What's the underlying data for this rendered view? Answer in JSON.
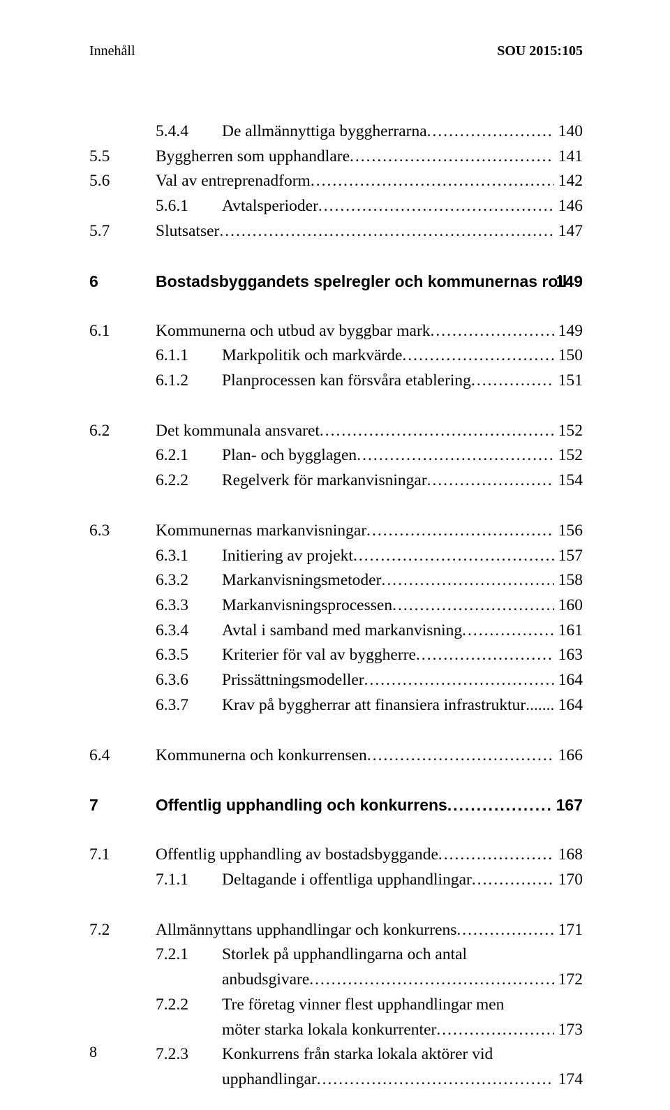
{
  "runningHead": {
    "left": "Innehåll",
    "right": "SOU 2015:105"
  },
  "folio": "8",
  "toc": [
    {
      "type": "subsub",
      "n": "",
      "sn": "5.4.4",
      "t": "De allmännyttiga byggherrarna",
      "p": "140",
      "firstBlock": true
    },
    {
      "type": "sub",
      "n": "5.5",
      "t": "Byggherren som upphandlare",
      "p": "141"
    },
    {
      "type": "sub",
      "n": "5.6",
      "t": "Val av entreprenadform",
      "p": "142"
    },
    {
      "type": "subsub",
      "n": "",
      "sn": "5.6.1",
      "t": "Avtalsperioder",
      "p": "146"
    },
    {
      "type": "sub",
      "n": "5.7",
      "t": "Slutsatser",
      "p": "147"
    },
    {
      "type": "chapter",
      "n": "6",
      "t": "Bostadsbyggandets spelregler och kommunernas roll",
      "p": "149"
    },
    {
      "type": "subblock",
      "n": "6.1",
      "t": "Kommunerna och utbud av byggbar mark",
      "p": "149"
    },
    {
      "type": "subsub",
      "n": "",
      "sn": "6.1.1",
      "t": "Markpolitik och markvärde",
      "p": "150"
    },
    {
      "type": "subsub",
      "n": "",
      "sn": "6.1.2",
      "t": "Planprocessen kan försvåra etablering",
      "p": "151"
    },
    {
      "type": "subblock",
      "n": "6.2",
      "t": "Det kommunala ansvaret",
      "p": "152"
    },
    {
      "type": "subsub",
      "n": "",
      "sn": "6.2.1",
      "t": "Plan- och bygglagen",
      "p": "152"
    },
    {
      "type": "subsub",
      "n": "",
      "sn": "6.2.2",
      "t": "Regelverk för markanvisningar",
      "p": "154"
    },
    {
      "type": "subblock",
      "n": "6.3",
      "t": "Kommunernas markanvisningar",
      "p": "156"
    },
    {
      "type": "subsub",
      "n": "",
      "sn": "6.3.1",
      "t": "Initiering av projekt",
      "p": "157"
    },
    {
      "type": "subsub",
      "n": "",
      "sn": "6.3.2",
      "t": "Markanvisningsmetoder",
      "p": "158"
    },
    {
      "type": "subsub",
      "n": "",
      "sn": "6.3.3",
      "t": "Markanvisningsprocessen",
      "p": "160"
    },
    {
      "type": "subsub",
      "n": "",
      "sn": "6.3.4",
      "t": "Avtal i samband med markanvisning",
      "p": "161"
    },
    {
      "type": "subsub",
      "n": "",
      "sn": "6.3.5",
      "t": "Kriterier för val av byggherre",
      "p": "163"
    },
    {
      "type": "subsub",
      "n": "",
      "sn": "6.3.6",
      "t": "Prissättningsmodeller",
      "p": "164"
    },
    {
      "type": "subsub",
      "n": "",
      "sn": "6.3.7",
      "t": "Krav på byggherrar att finansiera infrastruktur",
      "p": "164",
      "tightDots": true
    },
    {
      "type": "subblock",
      "n": "6.4",
      "t": "Kommunerna och konkurrensen",
      "p": "166"
    },
    {
      "type": "chapter",
      "n": "7",
      "t": "Offentlig upphandling och konkurrens",
      "p": "167"
    },
    {
      "type": "subblock",
      "n": "7.1",
      "t": "Offentlig upphandling av bostadsbyggande",
      "p": "168"
    },
    {
      "type": "subsub",
      "n": "",
      "sn": "7.1.1",
      "t": "Deltagande i offentliga upphandlingar",
      "p": "170"
    },
    {
      "type": "subblock",
      "n": "7.2",
      "t": "Allmännyttans upphandlingar och konkurrens",
      "p": "171"
    },
    {
      "type": "subsub-wrap",
      "n": "",
      "sn": "7.2.1",
      "t1": "Storlek på upphandlingarna och antal",
      "t2": "anbudsgivare",
      "p": "172"
    },
    {
      "type": "subsub-wrap",
      "n": "",
      "sn": "7.2.2",
      "t1": "Tre företag vinner flest upphandlingar men",
      "t2": "möter starka lokala konkurrenter",
      "p": "173"
    },
    {
      "type": "subsub-wrap",
      "n": "",
      "sn": "7.2.3",
      "t1": "Konkurrens från starka lokala aktörer vid",
      "t2": "upphandlingar",
      "p": "174"
    }
  ]
}
